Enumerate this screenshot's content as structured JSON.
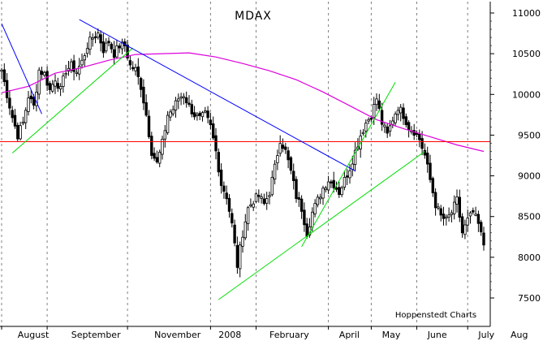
{
  "chart_data": {
    "type": "candlestick",
    "title": "MDAX",
    "credit": "Hoppenstedt Charts",
    "ylim": [
      7300,
      11150
    ],
    "yticks": [
      7500,
      8000,
      8500,
      9000,
      9500,
      10000,
      10500,
      11000
    ],
    "ytick_labels": [
      "7500",
      "8000",
      "8500",
      "9000",
      "9500",
      "10000",
      "10500",
      "11000"
    ],
    "x_domain": [
      0,
      185
    ],
    "month_gridlines": [
      0,
      17,
      47,
      78,
      95,
      122,
      138,
      155,
      174
    ],
    "month_labels": [
      {
        "x": 6,
        "label": "August"
      },
      {
        "x": 26,
        "label": "September"
      },
      {
        "x": 57,
        "label": "November"
      },
      {
        "x": 81,
        "label": "2008"
      },
      {
        "x": 100,
        "label": "February"
      },
      {
        "x": 126,
        "label": "April"
      },
      {
        "x": 142,
        "label": "May"
      },
      {
        "x": 159,
        "label": "June"
      },
      {
        "x": 178,
        "label": "July"
      },
      {
        "x": 190,
        "label": "Aug"
      }
    ],
    "price_series": [
      [
        0,
        10300
      ],
      [
        2,
        10000
      ],
      [
        4,
        9720
      ],
      [
        6,
        9500
      ],
      [
        8,
        9650
      ],
      [
        10,
        9980
      ],
      [
        12,
        9850
      ],
      [
        14,
        10300
      ],
      [
        16,
        10250
      ],
      [
        18,
        10050
      ],
      [
        20,
        10200
      ],
      [
        22,
        10050
      ],
      [
        24,
        10300
      ],
      [
        26,
        10350
      ],
      [
        28,
        10280
      ],
      [
        30,
        10400
      ],
      [
        32,
        10600
      ],
      [
        34,
        10700
      ],
      [
        36,
        10750
      ],
      [
        38,
        10550
      ],
      [
        40,
        10650
      ],
      [
        42,
        10500
      ],
      [
        44,
        10600
      ],
      [
        46,
        10600
      ],
      [
        48,
        10350
      ],
      [
        50,
        10300
      ],
      [
        52,
        10100
      ],
      [
        54,
        9750
      ],
      [
        56,
        9300
      ],
      [
        58,
        9150
      ],
      [
        60,
        9400
      ],
      [
        62,
        9750
      ],
      [
        64,
        9820
      ],
      [
        66,
        9950
      ],
      [
        68,
        10000
      ],
      [
        70,
        9850
      ],
      [
        72,
        9750
      ],
      [
        74,
        9700
      ],
      [
        76,
        9750
      ],
      [
        78,
        9600
      ],
      [
        80,
        9300
      ],
      [
        82,
        8900
      ],
      [
        84,
        8750
      ],
      [
        86,
        8400
      ],
      [
        88,
        7900
      ],
      [
        90,
        8300
      ],
      [
        92,
        8600
      ],
      [
        94,
        8700
      ],
      [
        96,
        8750
      ],
      [
        98,
        8650
      ],
      [
        100,
        8800
      ],
      [
        102,
        9100
      ],
      [
        104,
        9450
      ],
      [
        106,
        9300
      ],
      [
        108,
        9050
      ],
      [
        110,
        8750
      ],
      [
        112,
        8600
      ],
      [
        114,
        8300
      ],
      [
        116,
        8550
      ],
      [
        118,
        8700
      ],
      [
        120,
        8850
      ],
      [
        122,
        8950
      ],
      [
        124,
        8900
      ],
      [
        126,
        8800
      ],
      [
        128,
        8950
      ],
      [
        130,
        9100
      ],
      [
        132,
        9300
      ],
      [
        134,
        9500
      ],
      [
        136,
        9650
      ],
      [
        138,
        9750
      ],
      [
        140,
        9950
      ],
      [
        142,
        9650
      ],
      [
        144,
        9500
      ],
      [
        146,
        9700
      ],
      [
        148,
        9850
      ],
      [
        150,
        9750
      ],
      [
        152,
        9600
      ],
      [
        154,
        9550
      ],
      [
        156,
        9450
      ],
      [
        158,
        9250
      ],
      [
        160,
        8950
      ],
      [
        162,
        8650
      ],
      [
        164,
        8500
      ],
      [
        166,
        8450
      ],
      [
        168,
        8550
      ],
      [
        170,
        8700
      ],
      [
        172,
        8300
      ],
      [
        174,
        8450
      ],
      [
        176,
        8550
      ],
      [
        178,
        8400
      ],
      [
        180,
        8150
      ]
    ],
    "moving_average": [
      [
        0,
        10020
      ],
      [
        10,
        10100
      ],
      [
        20,
        10260
      ],
      [
        30,
        10330
      ],
      [
        40,
        10420
      ],
      [
        50,
        10490
      ],
      [
        60,
        10500
      ],
      [
        70,
        10510
      ],
      [
        80,
        10460
      ],
      [
        90,
        10380
      ],
      [
        100,
        10290
      ],
      [
        110,
        10180
      ],
      [
        120,
        10030
      ],
      [
        130,
        9860
      ],
      [
        140,
        9690
      ],
      [
        150,
        9580
      ],
      [
        160,
        9480
      ],
      [
        170,
        9380
      ],
      [
        180,
        9300
      ]
    ],
    "horizontal_line": {
      "y": 9420,
      "color": "#ff0000"
    },
    "trendlines": [
      {
        "color": "#0000ff",
        "points": [
          [
            0,
            10870
          ],
          [
            15,
            9760
          ]
        ]
      },
      {
        "color": "#00dd00",
        "points": [
          [
            4,
            9280
          ],
          [
            49,
            10570
          ]
        ]
      },
      {
        "color": "#0000ff",
        "points": [
          [
            29,
            10920
          ],
          [
            132,
            9060
          ]
        ]
      },
      {
        "color": "#00dd00",
        "points": [
          [
            81,
            7480
          ],
          [
            158,
            9300
          ]
        ]
      },
      {
        "color": "#00dd00",
        "points": [
          [
            112,
            8130
          ],
          [
            147,
            10150
          ]
        ]
      }
    ],
    "colors": {
      "candles": "#000000",
      "moving_average": "#dd00dd",
      "month_grid": "#808080",
      "axis": "#000000"
    }
  }
}
